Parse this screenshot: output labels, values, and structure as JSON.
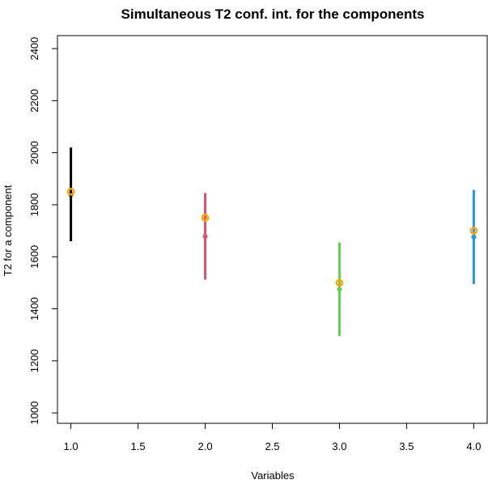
{
  "chart_data": {
    "type": "scatter",
    "title": "Simultaneous T2 conf. int. for the components",
    "xlabel": "Variables",
    "ylabel": "T2 for a component",
    "xlim": [
      0.9,
      4.1
    ],
    "ylim": [
      960,
      2450
    ],
    "x_ticks": [
      "1.0",
      "1.5",
      "2.0",
      "2.5",
      "3.0",
      "3.5",
      "4.0"
    ],
    "y_ticks": [
      "1000",
      "1200",
      "1400",
      "1600",
      "1800",
      "2000",
      "2200",
      "2400"
    ],
    "grid": false,
    "intervals": [
      {
        "x": 1,
        "lower": 1660,
        "upper": 2020,
        "estimate": 1840,
        "reference": 1850,
        "color": "#000000"
      },
      {
        "x": 2,
        "lower": 1512,
        "upper": 1845,
        "estimate": 1678,
        "reference": 1750,
        "color": "#DF536B"
      },
      {
        "x": 3,
        "lower": 1295,
        "upper": 1655,
        "estimate": 1475,
        "reference": 1500,
        "color": "#61D04F"
      },
      {
        "x": 4,
        "lower": 1495,
        "upper": 1857,
        "estimate": 1676,
        "reference": 1700,
        "color": "#2297E6"
      }
    ],
    "reference_color": "#FFA500"
  }
}
